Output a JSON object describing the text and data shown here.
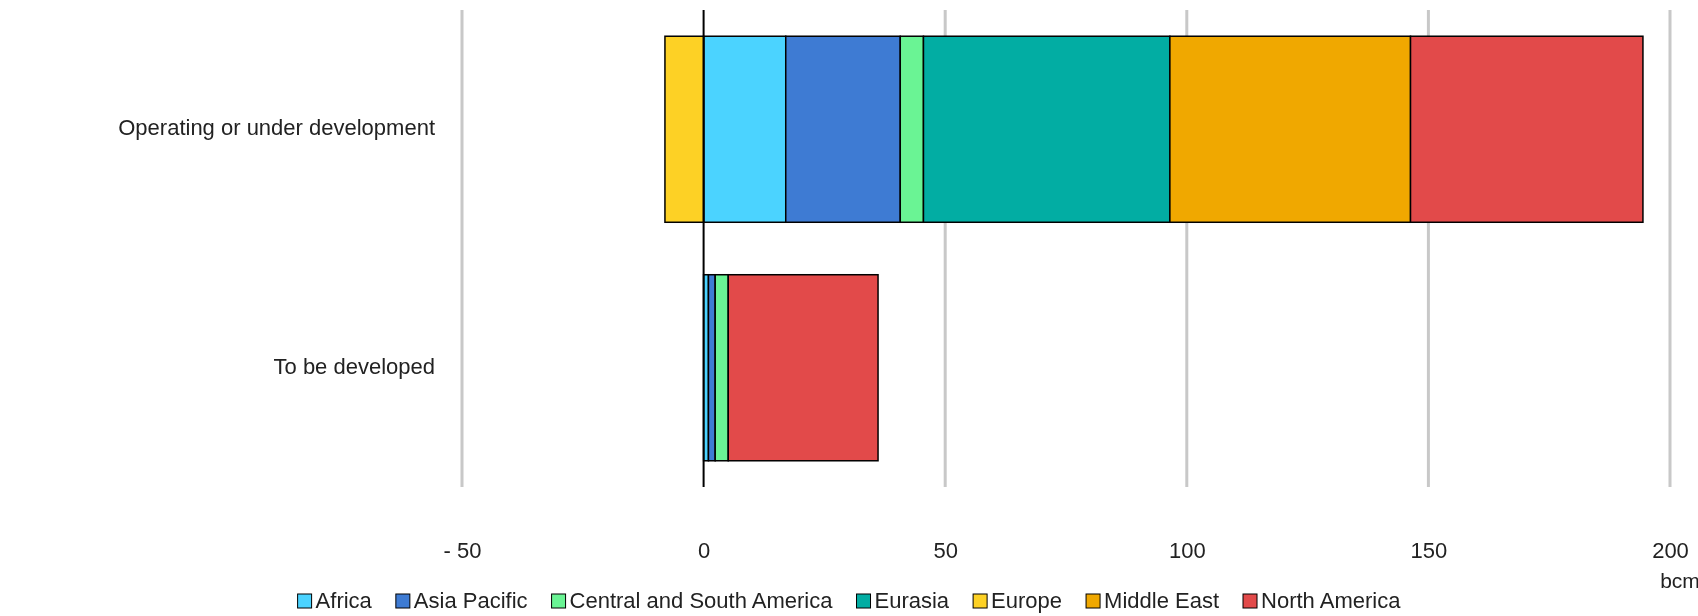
{
  "chart_data": {
    "type": "bar",
    "orientation": "horizontal",
    "stacked": true,
    "categories": [
      "Operating or under development",
      "To be developed"
    ],
    "series": [
      {
        "name": "Africa",
        "color": "#4bd3ff",
        "values": [
          17,
          1
        ]
      },
      {
        "name": "Asia Pacific",
        "color": "#3e7bd3",
        "values": [
          23.7,
          1.4
        ]
      },
      {
        "name": "Central and South America",
        "color": "#6af494",
        "values": [
          4.8,
          2.7
        ]
      },
      {
        "name": "Eurasia",
        "color": "#02ada3",
        "values": [
          51,
          0
        ]
      },
      {
        "name": "Europe",
        "color": "#fdd125",
        "values": [
          -8,
          0
        ]
      },
      {
        "name": "Middle East",
        "color": "#f0a800",
        "values": [
          49.8,
          0
        ]
      },
      {
        "name": "North America",
        "color": "#e24a4a",
        "values": [
          48.1,
          31
        ]
      }
    ],
    "xlim": [
      -50,
      200
    ],
    "xticks": [
      {
        "value": -50,
        "label": "- 50"
      },
      0,
      50,
      100,
      150,
      200
    ],
    "xlabel": "bcm",
    "grid": "x",
    "legend": "bottom"
  }
}
